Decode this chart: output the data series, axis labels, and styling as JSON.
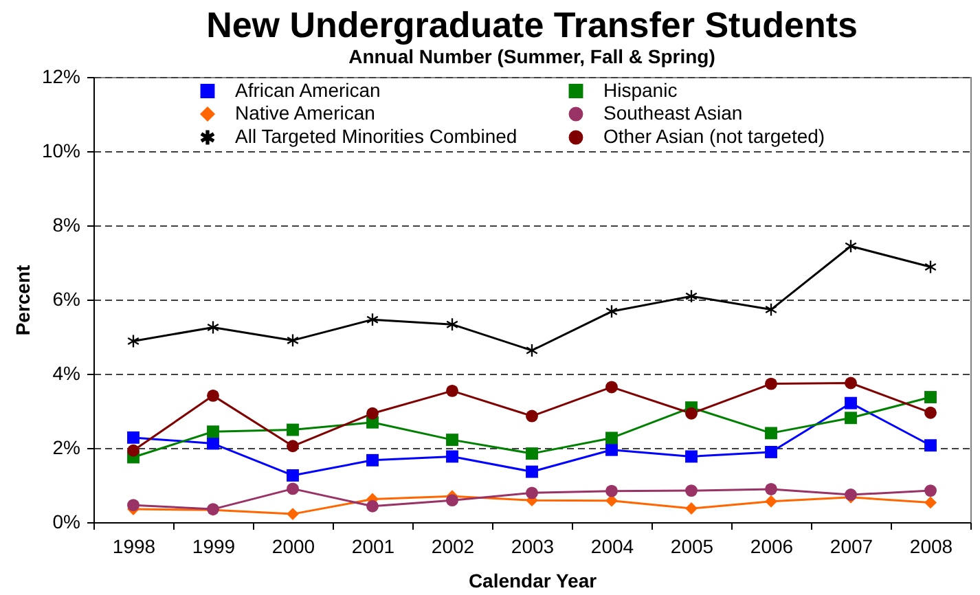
{
  "chart_data": {
    "type": "line",
    "title": "New Undergraduate Transfer Students",
    "subtitle": "Annual Number (Summer, Fall & Spring)",
    "xlabel": "Calendar Year",
    "ylabel": "Percent",
    "categories": [
      "1998",
      "1999",
      "2000",
      "2001",
      "2002",
      "2003",
      "2004",
      "2005",
      "2006",
      "2007",
      "2008"
    ],
    "series": [
      {
        "name": "African American",
        "color": "#0000ff",
        "marker": "square",
        "values": [
          2.28,
          2.12,
          1.26,
          1.67,
          1.77,
          1.36,
          1.95,
          1.77,
          1.89,
          3.21,
          2.07
        ]
      },
      {
        "name": "Hispanic",
        "color": "#008000",
        "marker": "square",
        "values": [
          1.75,
          2.44,
          2.49,
          2.69,
          2.22,
          1.85,
          2.27,
          3.09,
          2.4,
          2.81,
          3.37
        ]
      },
      {
        "name": "Native American",
        "color": "#ff6600",
        "marker": "diamond",
        "values": [
          0.35,
          0.33,
          0.22,
          0.62,
          0.7,
          0.59,
          0.58,
          0.37,
          0.56,
          0.67,
          0.53
        ]
      },
      {
        "name": "Southeast Asian",
        "color": "#993366",
        "marker": "circle",
        "values": [
          0.46,
          0.35,
          0.9,
          0.43,
          0.59,
          0.79,
          0.84,
          0.85,
          0.89,
          0.74,
          0.85
        ]
      },
      {
        "name": "All Targeted Minorities Combined",
        "color": "#000000",
        "marker": "cross",
        "values": [
          4.88,
          5.25,
          4.9,
          5.46,
          5.33,
          4.63,
          5.68,
          6.09,
          5.73,
          7.44,
          6.88
        ]
      },
      {
        "name": "Other Asian (not targeted)",
        "color": "#800000",
        "marker": "circle",
        "values": [
          1.93,
          3.41,
          2.05,
          2.93,
          3.54,
          2.86,
          3.64,
          2.93,
          3.73,
          3.75,
          2.95
        ]
      }
    ],
    "ylim": [
      0,
      12
    ],
    "yticks": [
      {
        "value": 0,
        "label": "0%"
      },
      {
        "value": 2,
        "label": "2%"
      },
      {
        "value": 4,
        "label": "4%"
      },
      {
        "value": 6,
        "label": "6%"
      },
      {
        "value": 8,
        "label": "8%"
      },
      {
        "value": 10,
        "label": "10%"
      },
      {
        "value": 12,
        "label": "12%"
      }
    ],
    "grid": "y",
    "legend": "top"
  }
}
